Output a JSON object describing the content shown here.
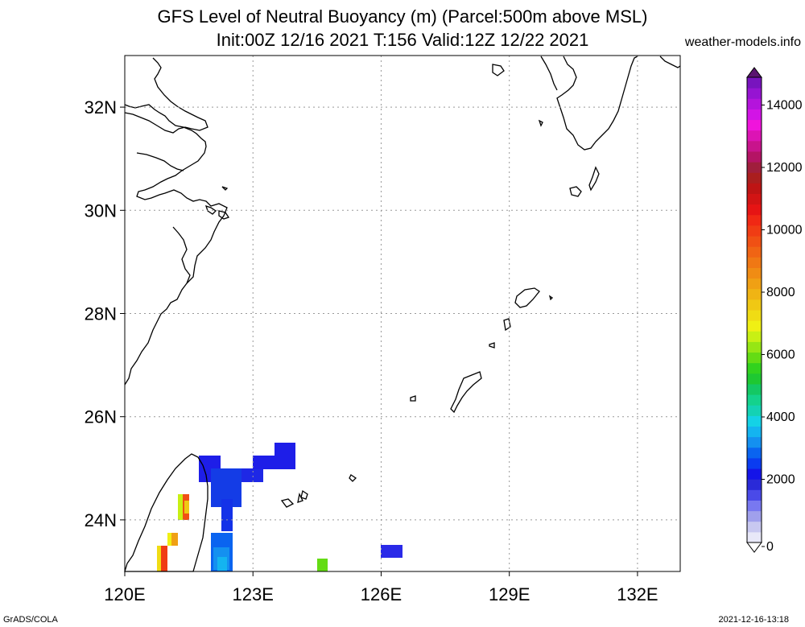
{
  "header": {
    "title_line1": "GFS Level of Neutral Buoyancy (m) (Parcel:500m above MSL)",
    "title_line2": "Init:00Z 12/16 2021 T:156 Valid:12Z 12/22 2021",
    "site": "weather-models.info"
  },
  "footer": {
    "left": "GrADS/COLA",
    "right": "2021-12-16-13:18"
  },
  "map": {
    "lon_range": [
      120,
      133
    ],
    "lat_range": [
      23,
      33
    ],
    "lat_ticks": [
      {
        "value": 24,
        "label": "24N"
      },
      {
        "value": 26,
        "label": "26N"
      },
      {
        "value": 28,
        "label": "28N"
      },
      {
        "value": 30,
        "label": "30N"
      },
      {
        "value": 32,
        "label": "32N"
      }
    ],
    "lon_ticks": [
      {
        "value": 120,
        "label": "120E"
      },
      {
        "value": 123,
        "label": "123E"
      },
      {
        "value": 126,
        "label": "126E"
      },
      {
        "value": 129,
        "label": "129E"
      },
      {
        "value": 132,
        "label": "132E"
      }
    ],
    "coastline_color": "#000000",
    "grid_style": "dotted"
  },
  "colorbar": {
    "labels": [
      "0",
      "2000",
      "4000",
      "6000",
      "8000",
      "10000",
      "12000",
      "14000"
    ],
    "colors": [
      "#e8e8f8",
      "#c8c8f0",
      "#a0a0ec",
      "#7878f0",
      "#4a4ae8",
      "#2a2ad8",
      "#1414e8",
      "#0a3cf0",
      "#0a64f0",
      "#1490f0",
      "#14b4f0",
      "#14d2e6",
      "#14d2b4",
      "#14d28c",
      "#14c864",
      "#1ec832",
      "#32d21e",
      "#64dc14",
      "#96e614",
      "#c8f014",
      "#f0f014",
      "#f0dc14",
      "#f0c814",
      "#f0b414",
      "#f0a014",
      "#f08c14",
      "#f07814",
      "#f06414",
      "#f05014",
      "#f03c14",
      "#f02814",
      "#e61414",
      "#d21414",
      "#be1414",
      "#aa1e1e",
      "#a01e3c",
      "#b41464",
      "#c8148c",
      "#dc14b4",
      "#f014dc",
      "#d214e6",
      "#b414dc",
      "#9614d2",
      "#7814be"
    ]
  },
  "data_field": {
    "units": "m",
    "cells": [
      {
        "lon": 121.8,
        "lat": 24.8,
        "value": 1200
      },
      {
        "lon": 122.1,
        "lat": 24.8,
        "value": 1300
      },
      {
        "lon": 122.4,
        "lat": 24.8,
        "value": 1400
      },
      {
        "lon": 122.7,
        "lat": 24.8,
        "value": 1200
      },
      {
        "lon": 123.0,
        "lat": 24.8,
        "value": 1300
      },
      {
        "lon": 122.1,
        "lat": 24.4,
        "value": 1500
      },
      {
        "lon": 122.4,
        "lat": 24.4,
        "value": 1700
      },
      {
        "lon": 122.1,
        "lat": 24.0,
        "value": 1600
      },
      {
        "lon": 122.1,
        "lat": 23.6,
        "value": 2000
      },
      {
        "lon": 122.4,
        "lat": 23.6,
        "value": 2400
      },
      {
        "lon": 123.3,
        "lat": 25.0,
        "value": 1300
      },
      {
        "lon": 123.6,
        "lat": 25.0,
        "value": 1200
      },
      {
        "lon": 123.6,
        "lat": 25.4,
        "value": 1300
      },
      {
        "lon": 121.2,
        "lat": 24.2,
        "value": 8000
      },
      {
        "lon": 121.0,
        "lat": 23.6,
        "value": 7000
      },
      {
        "lon": 120.8,
        "lat": 23.2,
        "value": 9000
      },
      {
        "lon": 126.2,
        "lat": 23.4,
        "value": 1800
      },
      {
        "lon": 124.6,
        "lat": 23.1,
        "value": 5200
      }
    ]
  }
}
